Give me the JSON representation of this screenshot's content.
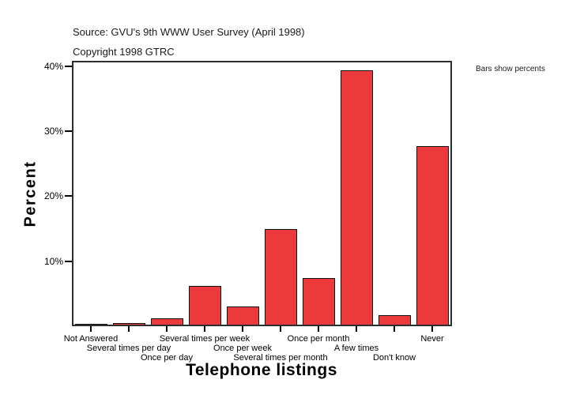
{
  "header": {
    "source": "Source: GVU's 9th WWW User Survey (April 1998)",
    "copyright": "Copyright 1998 GTRC"
  },
  "annotation": {
    "bars_note": "Bars show percents"
  },
  "chart_data": {
    "type": "bar",
    "title": "",
    "xlabel": "Telephone listings",
    "ylabel": "Percent",
    "categories": [
      "Not Answered",
      "Several times per day",
      "Once per day",
      "Several times per week",
      "Once per week",
      "Several times per month",
      "Once per month",
      "A few times",
      "Don't know",
      "Never"
    ],
    "values": [
      0.1,
      0.3,
      1.0,
      5.9,
      2.8,
      14.7,
      7.2,
      39.1,
      1.5,
      27.4
    ],
    "value_unit": "percent",
    "yticks": [
      {
        "value": 10,
        "label": "10%"
      },
      {
        "value": 20,
        "label": "20%"
      },
      {
        "value": 30,
        "label": "30%"
      },
      {
        "value": 40,
        "label": "40%"
      }
    ],
    "ylim": [
      0,
      40.8
    ],
    "grid": false,
    "legend": "none",
    "bar_color": "#EC3A3C",
    "bar_border_color": "#111111",
    "frame_color": "#2e2e2e",
    "text_color": "#000000"
  }
}
